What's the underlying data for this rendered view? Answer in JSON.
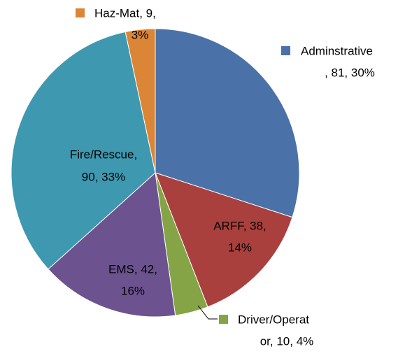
{
  "chart_data": {
    "type": "pie",
    "values": [
      81,
      38,
      10,
      42,
      90,
      9
    ],
    "value_labels": [
      [
        "Adminstrative",
        ", 81, 30%"
      ],
      [
        "ARFF, 38,",
        "14%"
      ],
      [
        "Driver/Operat",
        "or, 10, 4%"
      ],
      [
        "EMS, 42,",
        "16%"
      ],
      [
        "Fire/Rescue,",
        "90, 33%"
      ],
      [
        "Haz-Mat, 9,",
        "3%"
      ]
    ],
    "colors": [
      "#4a72a8",
      "#a9403d",
      "#84a446",
      "#6c5390",
      "#3e98b0",
      "#db8537"
    ]
  }
}
